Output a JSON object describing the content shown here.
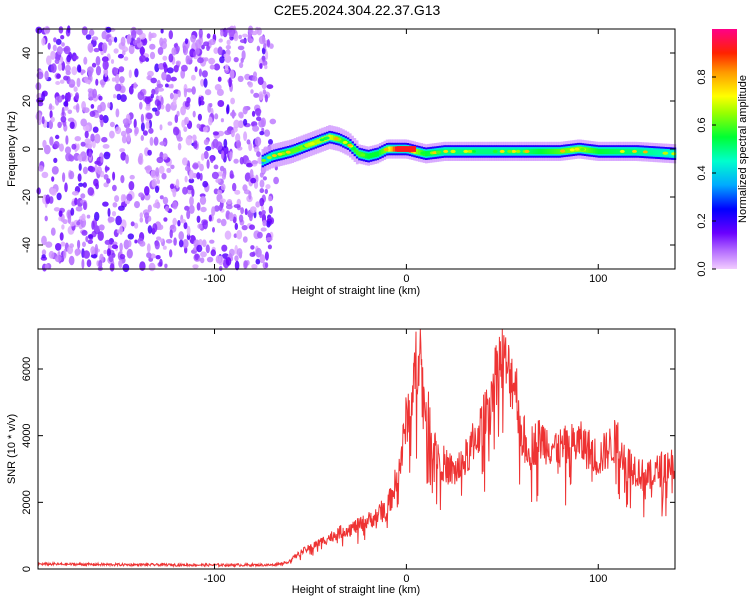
{
  "title": "C2E5.2024.304.22.37.G13",
  "chart_data": [
    {
      "type": "heatmap",
      "xlabel": "Height of straight line (km)",
      "ylabel": "Frequency (Hz)",
      "xlim": [
        -192,
        140
      ],
      "ylim": [
        -50,
        50
      ],
      "xticks": [
        -100,
        0,
        100
      ],
      "yticks": [
        -40,
        -20,
        0,
        20,
        40
      ],
      "xtick_labels": [
        "-100",
        "0",
        "100"
      ],
      "ytick_labels": [
        "-40",
        "-20",
        "0",
        "20",
        "40"
      ],
      "colorbar": {
        "label": "Normalized spectral amplitude",
        "range": [
          0,
          1
        ],
        "ticks": [
          0.0,
          0.2,
          0.4,
          0.6,
          0.8
        ],
        "tick_labels": [
          "0.0",
          "0.2",
          "0.4",
          "0.6",
          "0.8"
        ],
        "colormap": "rainbow"
      },
      "noise_region_x": [
        -192,
        -70
      ],
      "ridge": {
        "x": [
          -75,
          -70,
          -60,
          -50,
          -40,
          -35,
          -30,
          -25,
          -20,
          -15,
          -10,
          -5,
          0,
          5,
          10,
          20,
          40,
          60,
          80,
          90,
          100,
          120,
          140
        ],
        "frequency": [
          -5,
          -3,
          -1,
          2,
          5,
          4,
          2,
          -2,
          -3,
          -2,
          0,
          0,
          0,
          -1,
          -2,
          -1,
          -1,
          -1,
          -1,
          0,
          -1,
          -1,
          -2
        ],
        "amplitude": [
          0.3,
          0.45,
          0.55,
          0.6,
          0.65,
          0.55,
          0.5,
          0.55,
          0.5,
          0.5,
          0.6,
          0.9,
          0.95,
          0.6,
          0.5,
          0.45,
          0.45,
          0.45,
          0.55,
          0.6,
          0.5,
          0.45,
          0.4
        ]
      }
    },
    {
      "type": "line",
      "xlabel": "Height of straight line (km)",
      "ylabel": "SNR (10 * v/v)",
      "xlim": [
        -192,
        140
      ],
      "ylim": [
        0,
        7200
      ],
      "xticks": [
        -100,
        0,
        100
      ],
      "yticks": [
        0,
        2000,
        4000,
        6000
      ],
      "xtick_labels": [
        "-100",
        "0",
        "100"
      ],
      "ytick_labels": [
        "0",
        "2000",
        "4000",
        "6000"
      ],
      "series": [
        {
          "color": "#ee3333",
          "x": [
            -192,
            -150,
            -100,
            -70,
            -62,
            -55,
            -45,
            -35,
            -25,
            -15,
            -8,
            -3,
            0,
            3,
            5,
            7,
            9,
            12,
            15,
            20,
            25,
            30,
            35,
            40,
            45,
            48,
            50,
            53,
            57,
            60,
            65,
            70,
            80,
            90,
            95,
            100,
            105,
            110,
            115,
            120,
            125,
            130,
            135,
            140
          ],
          "values": [
            150,
            130,
            120,
            120,
            200,
            500,
            800,
            1100,
            1300,
            1600,
            2100,
            3200,
            4500,
            5200,
            6100,
            6800,
            5100,
            4400,
            3600,
            3100,
            2900,
            3200,
            3800,
            4400,
            5500,
            6200,
            6300,
            5900,
            5600,
            4000,
            3700,
            3900,
            3600,
            3800,
            3600,
            3300,
            3600,
            3900,
            3200,
            3000,
            2700,
            2900,
            3100,
            3200
          ]
        }
      ]
    }
  ]
}
